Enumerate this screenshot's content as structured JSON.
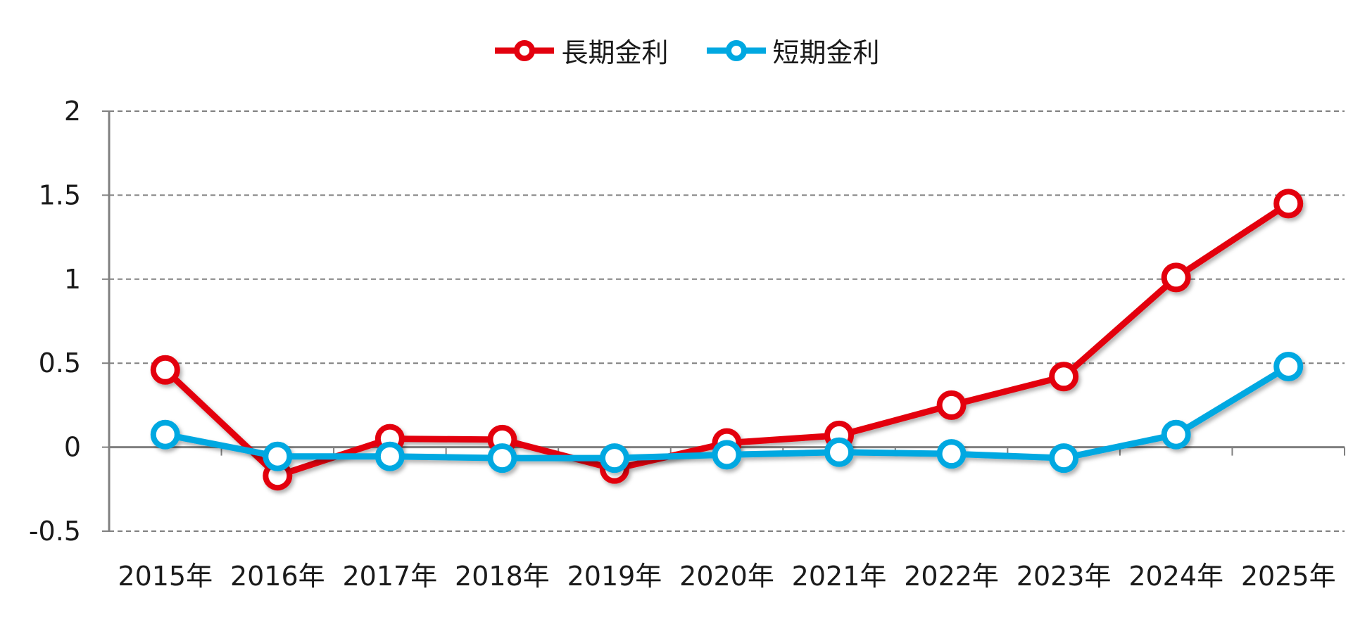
{
  "chart_data": {
    "type": "line",
    "categories": [
      "2015年",
      "2016年",
      "2017年",
      "2018年",
      "2019年",
      "2020年",
      "2021年",
      "2022年",
      "2023年",
      "2024年",
      "2025年"
    ],
    "series": [
      {
        "name": "長期金利",
        "color": "#e3000f",
        "values": [
          0.46,
          -0.17,
          0.05,
          0.045,
          -0.13,
          0.025,
          0.07,
          0.25,
          0.42,
          1.01,
          1.45
        ]
      },
      {
        "name": "短期金利",
        "color": "#00a8e1",
        "values": [
          0.075,
          -0.055,
          -0.055,
          -0.065,
          -0.065,
          -0.045,
          -0.03,
          -0.04,
          -0.065,
          0.075,
          0.48
        ]
      }
    ],
    "yticks": [
      "2",
      "1.5",
      "1",
      "0.5",
      "0",
      "-0.5"
    ],
    "ylim": [
      -0.5,
      2
    ],
    "grid": true,
    "legend_position": "top-center",
    "xlabel": "",
    "ylabel": ""
  }
}
